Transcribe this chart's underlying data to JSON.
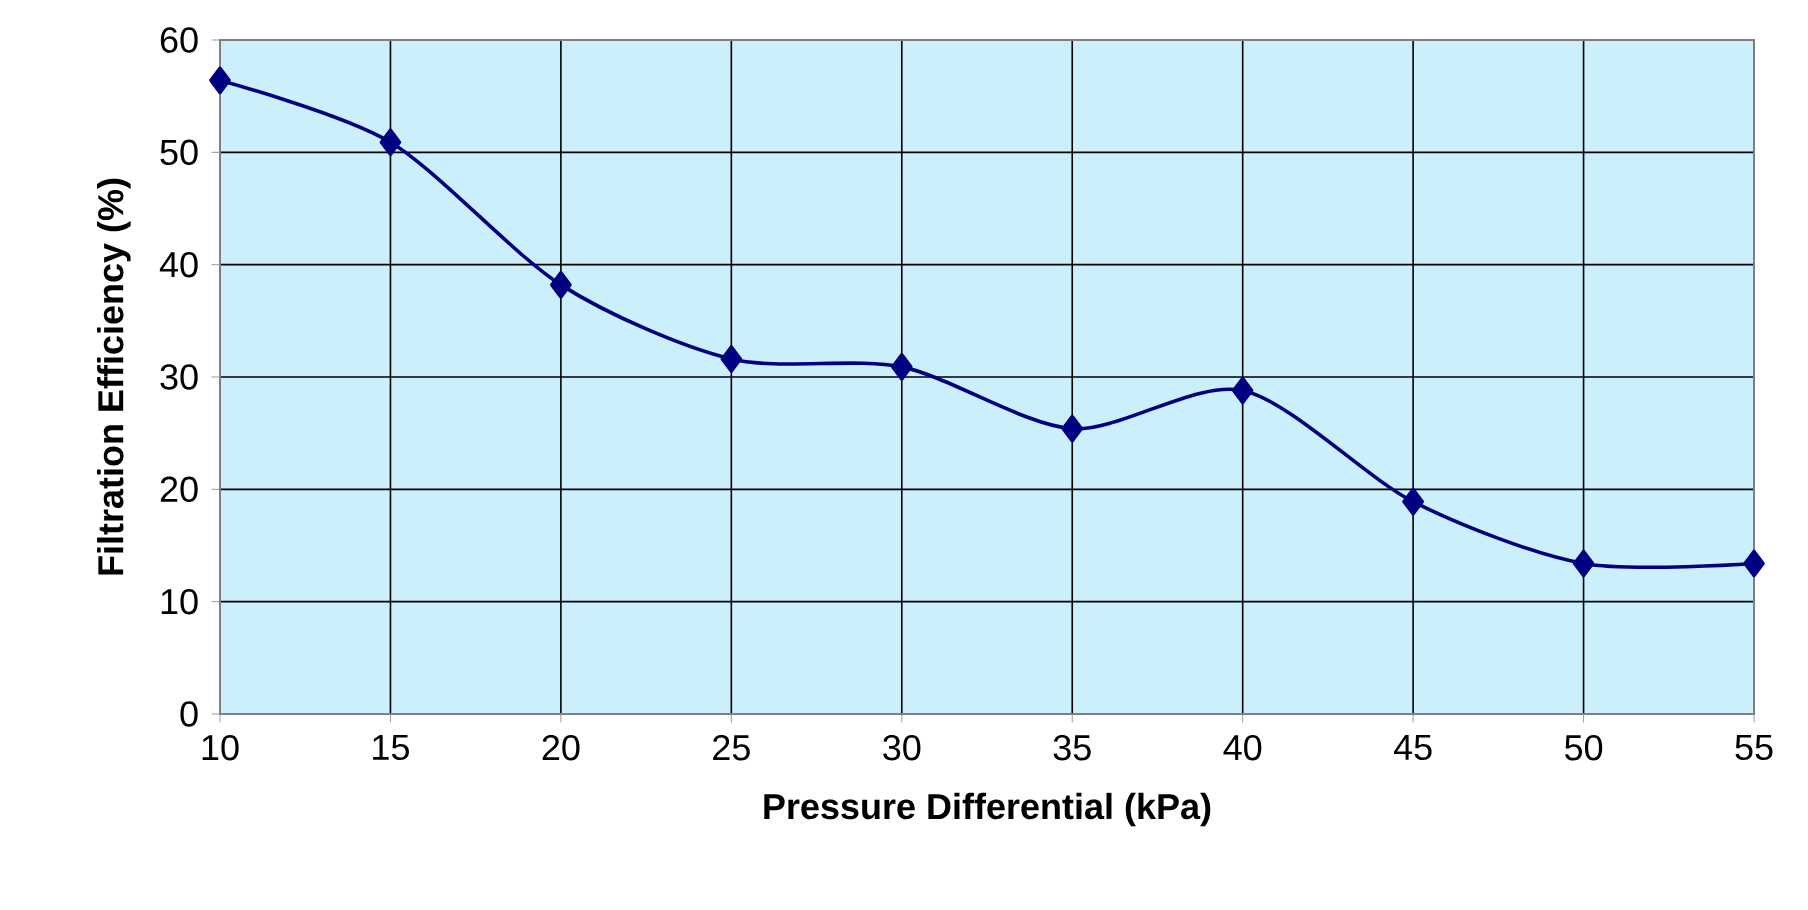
{
  "chart_data": {
    "type": "line",
    "xlabel": "Pressure Differential (kPa)",
    "ylabel": "Filtration Efficiency (%)",
    "x": [
      10,
      15,
      20,
      25,
      30,
      35,
      40,
      45,
      50,
      55
    ],
    "series": [
      {
        "color": "#000080",
        "values": [
          56.4,
          50.9,
          38.2,
          31.6,
          30.9,
          25.4,
          28.8,
          18.9,
          13.4,
          13.4
        ]
      }
    ],
    "xlim": [
      10,
      55
    ],
    "ylim": [
      0,
      60
    ],
    "xticks": [
      10,
      15,
      20,
      25,
      30,
      35,
      40,
      45,
      50,
      55
    ],
    "yticks": [
      0,
      10,
      20,
      30,
      40,
      50,
      60
    ],
    "grid": true,
    "marker": "diamond",
    "line_style": "solid"
  }
}
